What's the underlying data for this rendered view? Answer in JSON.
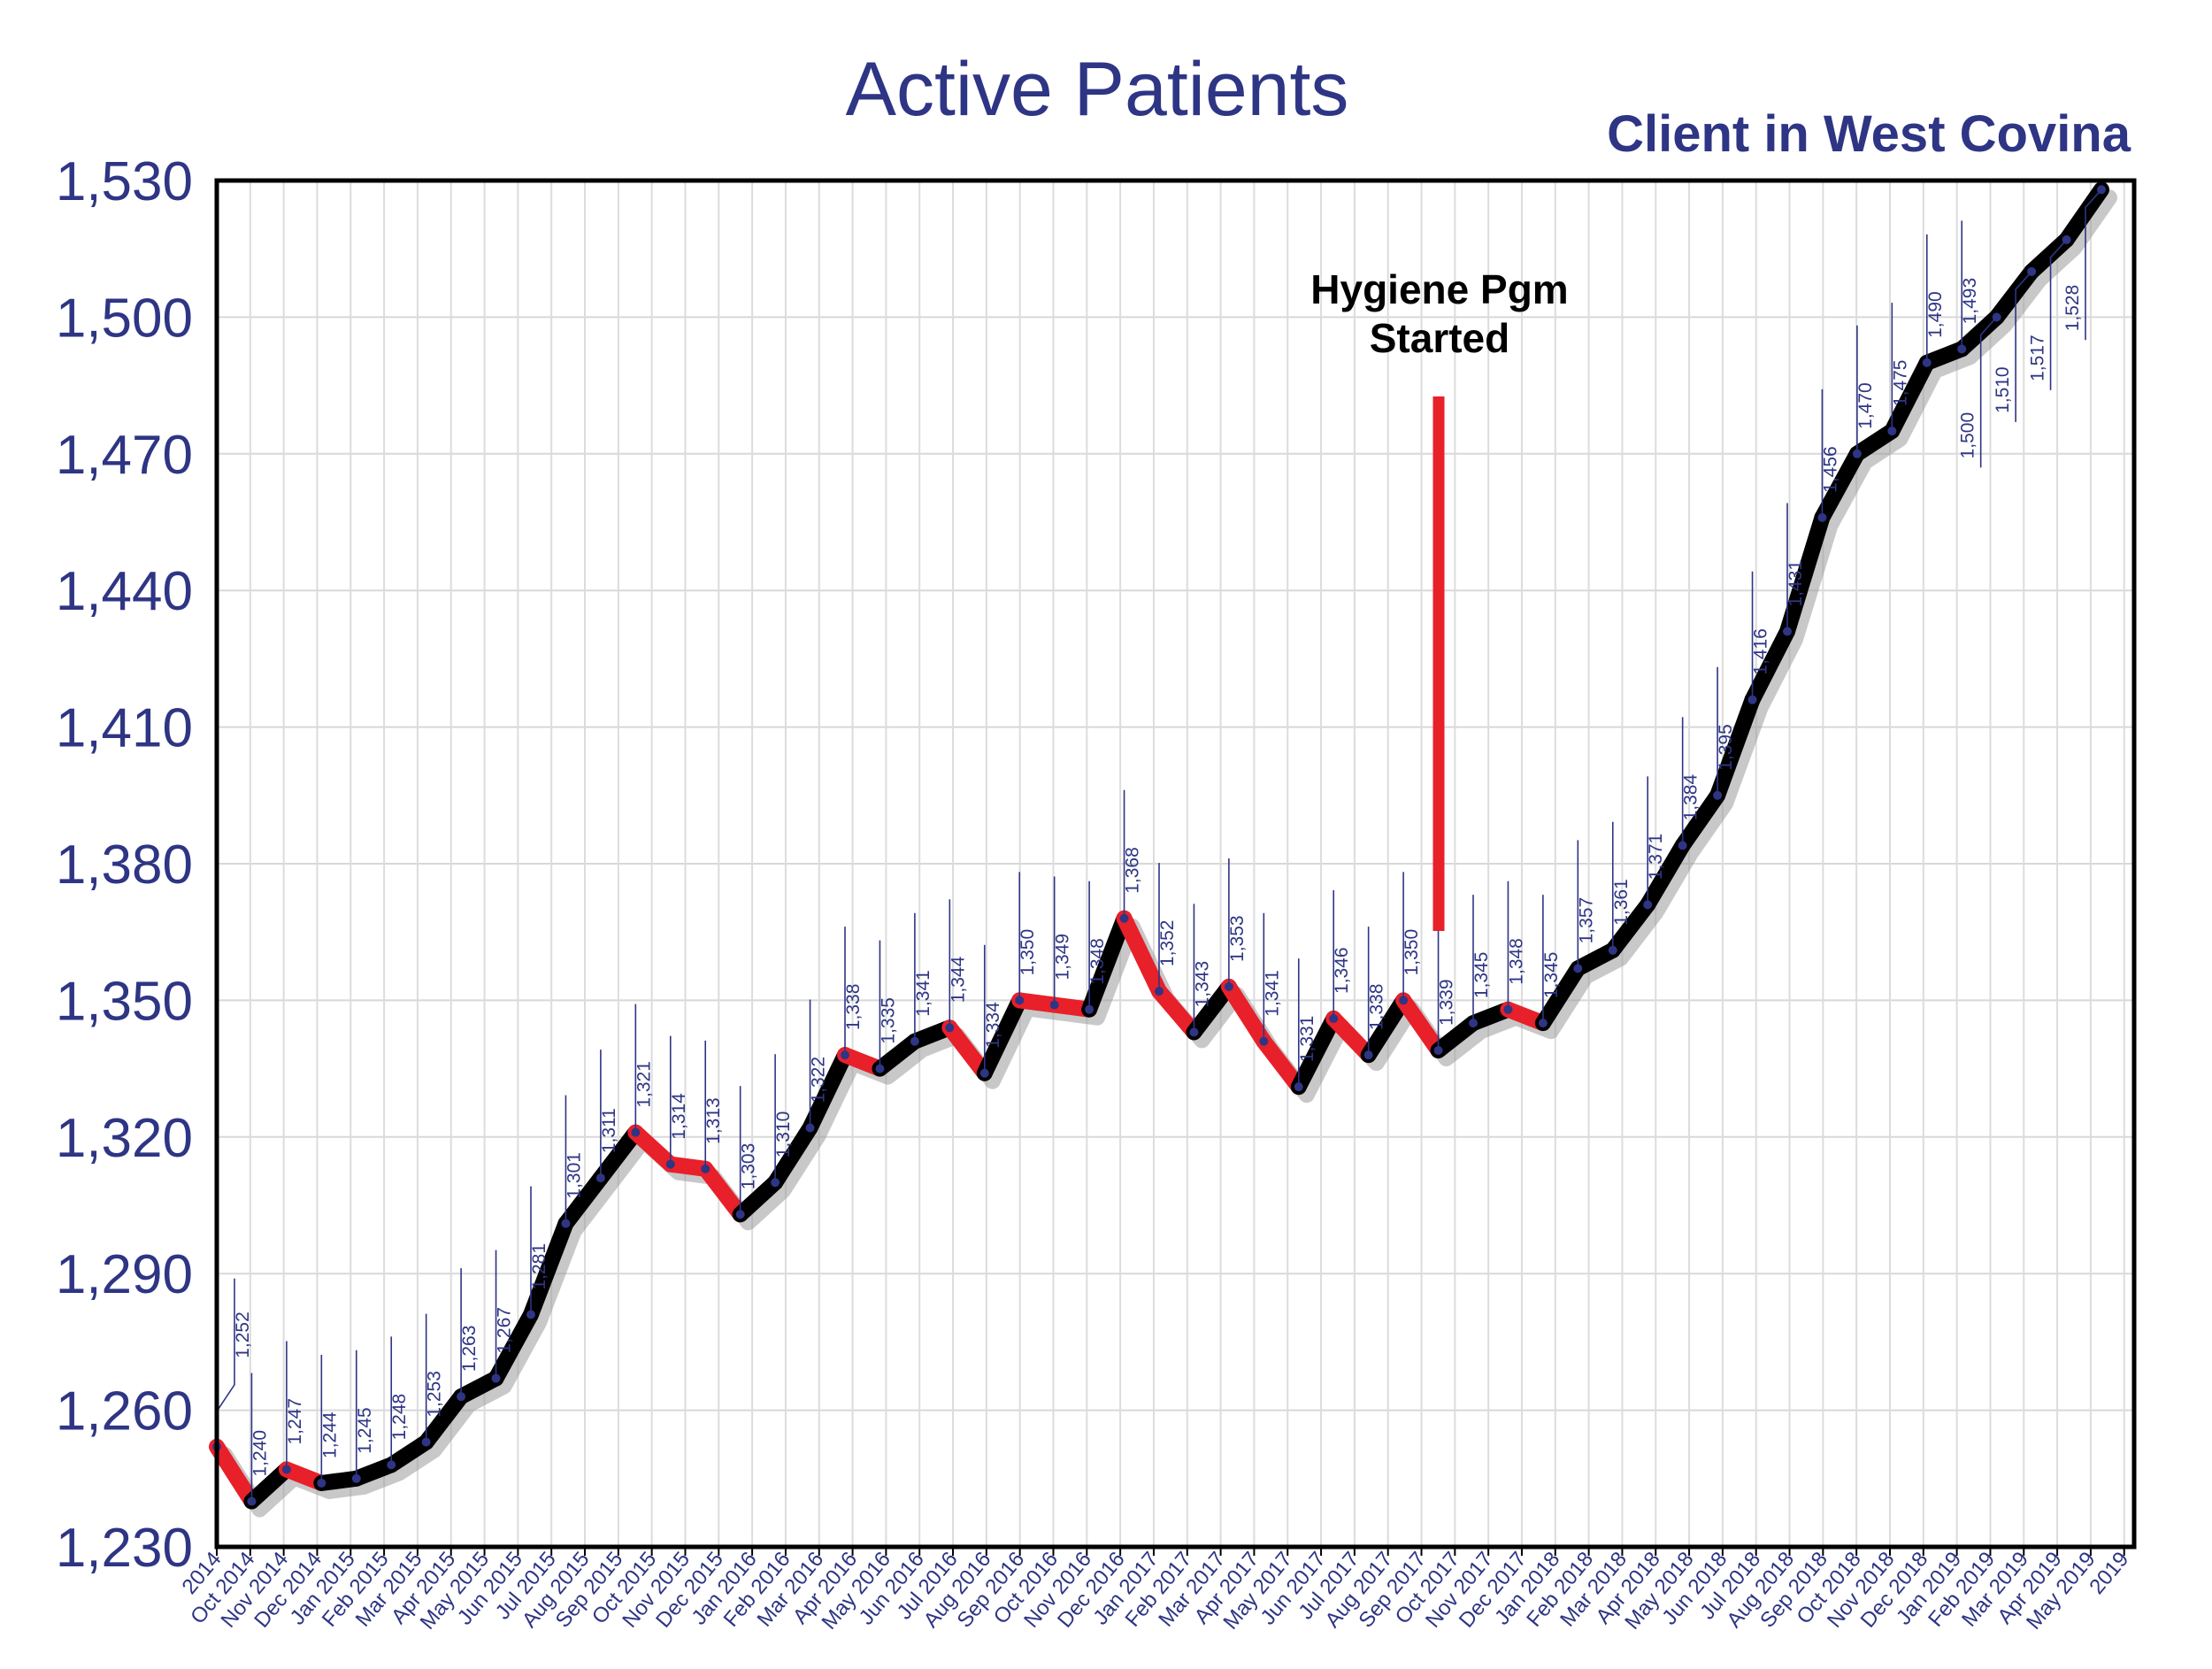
{
  "chart_data": {
    "type": "line",
    "title": "Active Patients",
    "subtitle": "Client in West Covina",
    "ylim": [
      1230,
      1530
    ],
    "yticks": [
      1230,
      1260,
      1290,
      1320,
      1350,
      1380,
      1410,
      1440,
      1470,
      1500,
      1530
    ],
    "ytick_labels": [
      "1,230",
      "1,260",
      "1,290",
      "1,320",
      "1,350",
      "1,380",
      "1,410",
      "1,440",
      "1,470",
      "1,500",
      "1,530"
    ],
    "x_tick_labels": [
      "2014",
      "Oct 2014",
      "Nov 2014",
      "Dec 2014",
      "Jan 2015",
      "Feb 2015",
      "Mar 2015",
      "Apr 2015",
      "May 2015",
      "Jun 2015",
      "Jul 2015",
      "Aug 2015",
      "Sep 2015",
      "Oct 2015",
      "Nov 2015",
      "Dec 2015",
      "Jan 2016",
      "Feb 2016",
      "Mar 2016",
      "Apr 2016",
      "May 2016",
      "Jun 2016",
      "Jul 2016",
      "Aug 2016",
      "Sep 2016",
      "Oct 2016",
      "Nov 2016",
      "Dec 2016",
      "Jan 2017",
      "Feb 2017",
      "Mar 2017",
      "Apr 2017",
      "May 2017",
      "Jun 2017",
      "Jul 2017",
      "Aug 2017",
      "Sep 2017",
      "Oct 2017",
      "Nov 2017",
      "Dec 2017",
      "Jan 2018",
      "Feb 2018",
      "Mar 2018",
      "Apr 2018",
      "May 2018",
      "Jun 2018",
      "Jul 2018",
      "Aug 2018",
      "Sep 2018",
      "Oct 2018",
      "Nov 2018",
      "Dec 2018",
      "Jan 2019",
      "Feb 2019",
      "Mar 2019",
      "Apr 2019",
      "May 2019",
      "2019"
    ],
    "values": [
      1252,
      1240,
      1247,
      1244,
      1245,
      1248,
      1253,
      1263,
      1267,
      1281,
      1301,
      1311,
      1321,
      1314,
      1313,
      1303,
      1310,
      1322,
      1338,
      1335,
      1341,
      1344,
      1334,
      1350,
      1349,
      1348,
      1368,
      1352,
      1343,
      1353,
      1341,
      1331,
      1346,
      1338,
      1350,
      1339,
      1345,
      1348,
      1345,
      1357,
      1361,
      1371,
      1384,
      1395,
      1416,
      1431,
      1456,
      1470,
      1475,
      1490,
      1493,
      1500,
      1510,
      1517,
      1528
    ],
    "value_labels": [
      "1,252",
      "1,240",
      "1,247",
      "1,244",
      "1,245",
      "1,248",
      "1,253",
      "1,263",
      "1,267",
      "1,281",
      "1,301",
      "1,311",
      "1,321",
      "1,314",
      "1,313",
      "1,303",
      "1,310",
      "1,322",
      "1,338",
      "1,335",
      "1,341",
      "1,344",
      "1,334",
      "1,350",
      "1,349",
      "1,348",
      "1,368",
      "1,352",
      "1,343",
      "1,353",
      "1,341",
      "1,331",
      "1,346",
      "1,338",
      "1,350",
      "1,339",
      "1,345",
      "1,348",
      "1,345",
      "1,357",
      "1,361",
      "1,371",
      "1,384",
      "1,395",
      "1,416",
      "1,431",
      "1,456",
      "1,470",
      "1,475",
      "1,490",
      "1,493",
      "1,500",
      "1,510",
      "1,517",
      "1,528"
    ],
    "annotation": {
      "text_line1": "Hygiene Pgm",
      "text_line2": "Started"
    },
    "grid": true,
    "colors": {
      "line_up": "#000000",
      "line_down": "#e8202a",
      "text": "#2e3584",
      "marker": "#2e3584",
      "annotation_line": "#e8202a"
    }
  }
}
